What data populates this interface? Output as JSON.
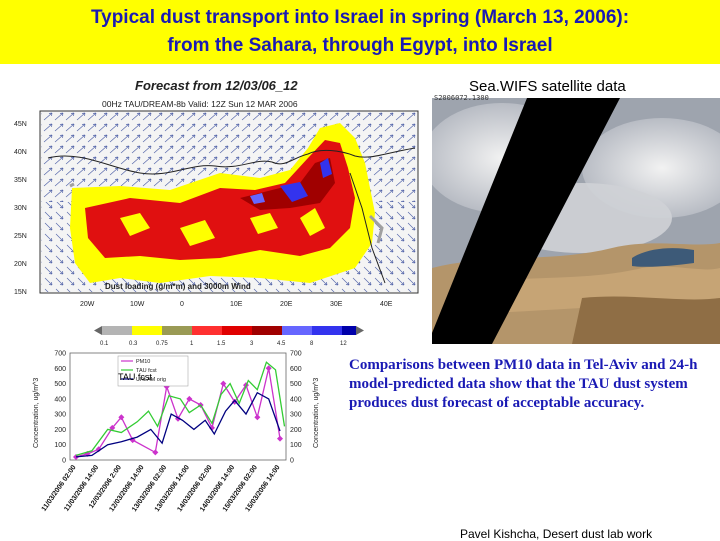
{
  "title": {
    "line1": "Typical dust transport into Israel in spring (March 13, 2006):",
    "line2": "from the Sahara, through Egypt, into Israel"
  },
  "model_map": {
    "forecast_label": "Forecast from 12/03/06_12",
    "header": "00Hz TAU/DREAM-8b Valid: 12Z Sun 12 MAR 2006",
    "lat_labels": [
      "45N",
      "40N",
      "35N",
      "30N",
      "25N",
      "20N",
      "15N"
    ],
    "lon_labels": [
      "20W",
      "10W",
      "0",
      "10E",
      "20E",
      "30E",
      "40E"
    ],
    "caption": "Dust loading (g/m*m) and 3000m Wind",
    "colorbar_labels": [
      "0.1",
      "0.3",
      "0.75",
      "1",
      "1.5",
      "3",
      "4.5",
      "8",
      "12"
    ],
    "colorbar_colors": [
      "#b4b4b4",
      "#ffff00",
      "#9a9a55",
      "#ff3030",
      "#e00000",
      "#a00000",
      "#6666ff",
      "#3333ee",
      "#0000aa"
    ]
  },
  "satellite": {
    "label": "Sea.WIFS satellite data",
    "stamp": "S2006072.1300"
  },
  "chart_data": {
    "type": "line",
    "categories": [
      "11/03/2006 02:00",
      "11/03/2006 14:00",
      "12/03/2006 2:00",
      "12/03/2006 14:00",
      "13/03/2006 02:00",
      "13/03/2006 14:00",
      "14/03/2006 02:00",
      "14/03/2006 14:00",
      "15/03/2006 02:00",
      "15/03/2006 14:00"
    ],
    "ylabel_left": "Concentration, ug/m^3",
    "ylabel_right": "Concentration, ug/m^3",
    "yticks": [
      "0",
      "100",
      "200",
      "300",
      "400",
      "500",
      "600",
      "700"
    ],
    "ylim": [
      0,
      700
    ],
    "legend_entries": [
      "PM10",
      "TAU fcst",
      "URLAM orig"
    ],
    "annotation": "TAU fcst",
    "series": [
      {
        "name": "PM10",
        "color": "#cc33cc",
        "x": [
          0.0,
          0.5,
          1.0,
          1.6,
          2.0,
          2.5,
          3.5,
          4.0,
          4.5,
          5.0,
          5.5,
          6.0,
          6.5,
          7.0,
          7.5,
          8.0,
          8.5,
          9.0
        ],
        "values": [
          20,
          40,
          70,
          210,
          280,
          130,
          50,
          480,
          270,
          400,
          360,
          210,
          500,
          380,
          490,
          280,
          600,
          140
        ]
      },
      {
        "name": "TAU fcst",
        "color": "#33cc33",
        "x": [
          0.0,
          0.7,
          1.4,
          2.0,
          2.7,
          3.2,
          3.6,
          4.1,
          4.6,
          5.0,
          5.5,
          6.0,
          6.4,
          6.8,
          7.2,
          7.6,
          8.0,
          8.4,
          8.8,
          9.2
        ],
        "values": [
          30,
          60,
          200,
          180,
          250,
          320,
          220,
          420,
          400,
          310,
          360,
          240,
          430,
          500,
          370,
          520,
          460,
          640,
          590,
          220
        ]
      },
      {
        "name": "URLAM orig",
        "color": "#000080",
        "x": [
          0.0,
          0.7,
          1.4,
          2.0,
          2.7,
          3.3,
          3.8,
          4.2,
          4.7,
          5.2,
          5.7,
          6.1,
          6.6,
          7.0,
          7.5,
          8.0,
          8.5,
          9.0
        ],
        "values": [
          20,
          30,
          100,
          120,
          150,
          200,
          110,
          300,
          260,
          200,
          260,
          170,
          320,
          390,
          300,
          440,
          400,
          190
        ]
      }
    ]
  },
  "comparison": {
    "text": "Comparisons between PM10 data in Tel-Aviv and 24-h model-predicted data show that the TAU dust system produces dust forecast of acceptable accuracy."
  },
  "footer": {
    "author": "Pavel Kishcha,  Desert dust lab work"
  }
}
